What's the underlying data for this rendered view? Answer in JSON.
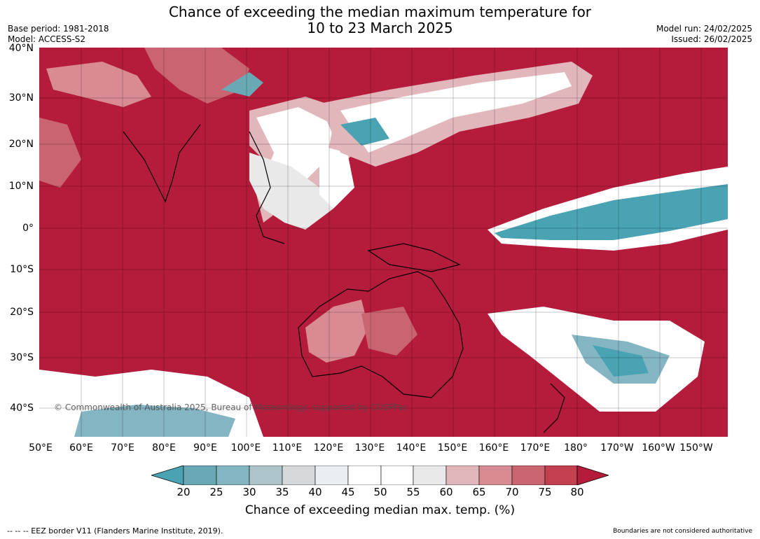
{
  "header": {
    "title_line1": "Chance of exceeding the median maximum temperature for",
    "title_line2": "10 to 23 March 2025",
    "base_period": "Base period: 1981-2018",
    "model": "Model: ACCESS-S2",
    "model_run": "Model run: 24/02/2025",
    "issued": "Issued: 26/02/2025"
  },
  "map": {
    "copyright": "© Commonwealth of Australia 2025, Bureau of Meteorology, supported by COSPPac",
    "lat_labels": [
      "40°N",
      "30°N",
      "20°N",
      "10°N",
      "0°",
      "10°S",
      "20°S",
      "30°S",
      "40°S"
    ],
    "lon_labels": [
      "50°E",
      "60°E",
      "70°E",
      "80°E",
      "90°E",
      "100°E",
      "110°E",
      "120°E",
      "130°E",
      "140°E",
      "150°E",
      "160°E",
      "170°E",
      "180°",
      "170°W",
      "160°W",
      "150°W"
    ],
    "colors": {
      "ocean_high": "#b51b3a",
      "c75_80": "#c2404f",
      "c70_75": "#c96570",
      "c65_70": "#d88b93",
      "c60_65": "#e2b7bc",
      "c55_60": "#e9e9e9",
      "c45_55": "#ffffff",
      "c40_45": "#e8eef1",
      "c35_40": "#d4d8da",
      "c30_35": "#adc4ca",
      "c25_30": "#84b5c3",
      "c20_25": "#6aa9b4",
      "low": "#4aa3b3"
    }
  },
  "colorbar": {
    "ticks": [
      "20",
      "25",
      "30",
      "35",
      "40",
      "45",
      "50",
      "55",
      "60",
      "65",
      "70",
      "75",
      "80"
    ],
    "label": "Chance of exceeding median max. temp. (%)"
  },
  "footer": {
    "eez": "--  --  -- EEZ border V11 (Flanders Marine Institute, 2019).",
    "boundaries": "Boundaries are not considered authoritative"
  }
}
